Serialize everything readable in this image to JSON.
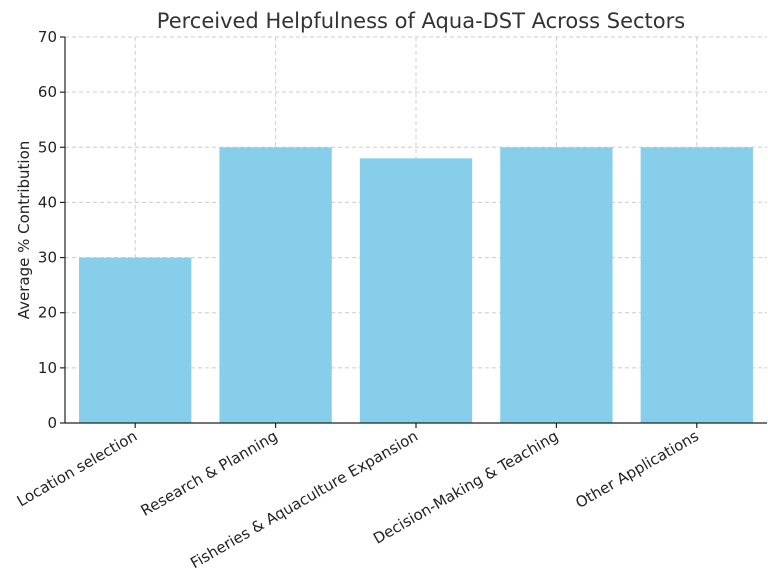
{
  "chart_data": {
    "type": "bar",
    "title": "Perceived Helpfulness of Aqua-DST Across Sectors",
    "xlabel": "",
    "ylabel": "Average % Contribution",
    "categories": [
      "Location selection",
      "Research & Planning",
      "Fisheries & Aquaculture Expansion",
      "Decision-Making & Teaching",
      "Other Applications"
    ],
    "values": [
      30,
      50,
      48,
      50,
      50
    ],
    "ylim": [
      0,
      70
    ],
    "yticks": [
      0,
      10,
      20,
      30,
      40,
      50,
      60,
      70
    ],
    "grid": true,
    "bar_color": "#87ceeb"
  }
}
